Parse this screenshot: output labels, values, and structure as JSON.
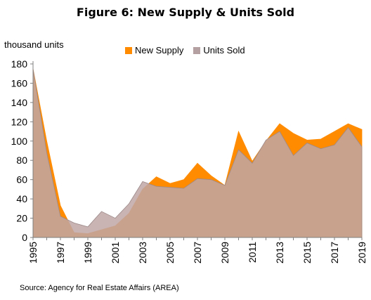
{
  "chart_data": {
    "type": "area",
    "title": "Figure 6: New Supply & Units Sold",
    "ylabel": "thousand units",
    "xlabel": "",
    "x": [
      1995,
      1996,
      1997,
      1998,
      1999,
      2000,
      2001,
      2002,
      2003,
      2004,
      2005,
      2006,
      2007,
      2008,
      2009,
      2010,
      2011,
      2012,
      2013,
      2014,
      2015,
      2016,
      2017,
      2018,
      2019
    ],
    "x_tick_labels": [
      "1995",
      "1997",
      "1999",
      "2001",
      "2003",
      "2005",
      "2007",
      "2009",
      "2011",
      "2013",
      "2015",
      "2017",
      "2019"
    ],
    "y_tick_labels": [
      "0",
      "20",
      "40",
      "60",
      "80",
      "100",
      "120",
      "140",
      "160",
      "180"
    ],
    "ylim": [
      0,
      180
    ],
    "grid": false,
    "legend_position": "top",
    "series": [
      {
        "name": "New Supply",
        "color": "#FF8C00",
        "values": [
          175,
          100,
          33,
          5,
          4,
          8,
          12,
          25,
          50,
          63,
          56,
          60,
          77,
          64,
          54,
          110,
          79,
          100,
          118,
          108,
          101,
          102,
          110,
          118,
          112
        ]
      },
      {
        "name": "Units Sold",
        "color": "#BFA6A6",
        "values": [
          175,
          88,
          22,
          15,
          11,
          27,
          20,
          35,
          58,
          53,
          52,
          51,
          61,
          60,
          54,
          91,
          77,
          101,
          110,
          85,
          98,
          92,
          96,
          114,
          94
        ]
      }
    ]
  },
  "source": "Source: Agency for Real Estate Affairs (AREA)"
}
